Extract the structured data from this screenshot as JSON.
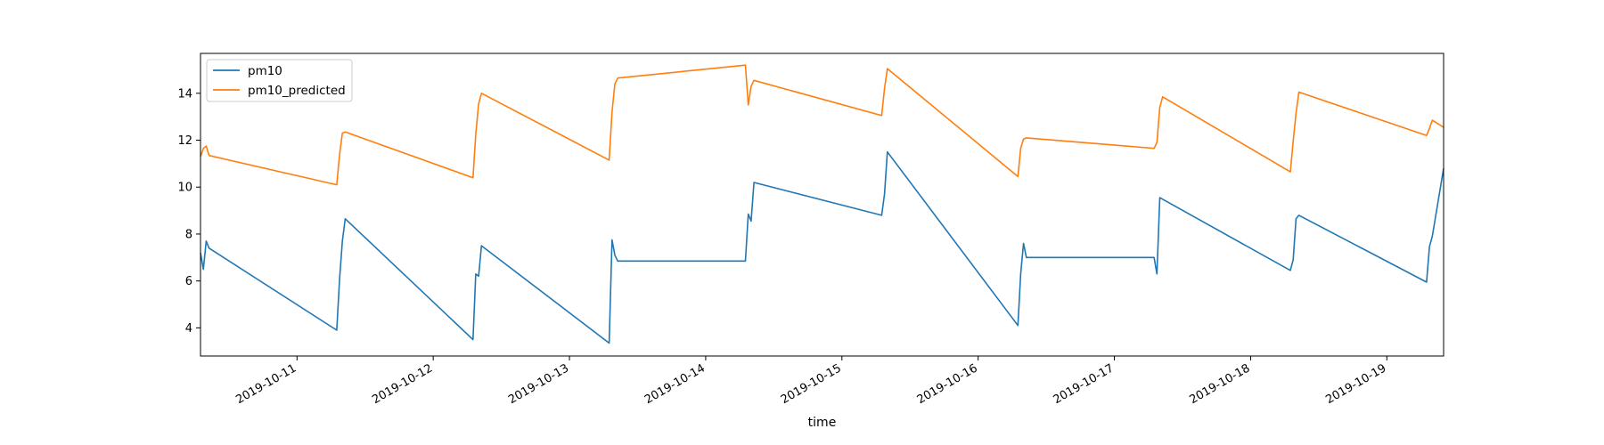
{
  "chart_data": {
    "type": "line",
    "title": "",
    "xlabel": "time",
    "ylabel": "",
    "x_axis_type": "datetime",
    "xlim": [
      "2019-10-10T07:00",
      "2019-10-19T10:00"
    ],
    "ylim": [
      2.8,
      15.7
    ],
    "x_ticks": [
      "2019-10-11",
      "2019-10-12",
      "2019-10-13",
      "2019-10-14",
      "2019-10-15",
      "2019-10-16",
      "2019-10-17",
      "2019-10-18",
      "2019-10-19"
    ],
    "y_ticks": [
      4,
      6,
      8,
      10,
      12,
      14
    ],
    "grid": false,
    "legend_position": "upper-left",
    "series": [
      {
        "name": "pm10",
        "color": "#1f77b4",
        "points": [
          [
            "2019-10-10T07:00",
            7.2
          ],
          [
            "2019-10-10T07:30",
            6.5
          ],
          [
            "2019-10-10T08:00",
            7.7
          ],
          [
            "2019-10-10T08:30",
            7.4
          ],
          [
            "2019-10-11T07:00",
            3.9
          ],
          [
            "2019-10-11T07:30",
            6.1
          ],
          [
            "2019-10-11T08:00",
            7.7
          ],
          [
            "2019-10-11T08:30",
            8.65
          ],
          [
            "2019-10-12T07:00",
            3.5
          ],
          [
            "2019-10-12T07:30",
            6.3
          ],
          [
            "2019-10-12T08:00",
            6.2
          ],
          [
            "2019-10-12T08:30",
            7.5
          ],
          [
            "2019-10-13T07:00",
            3.35
          ],
          [
            "2019-10-13T07:30",
            7.75
          ],
          [
            "2019-10-13T08:00",
            7.1
          ],
          [
            "2019-10-13T08:30",
            6.85
          ],
          [
            "2019-10-14T07:00",
            6.85
          ],
          [
            "2019-10-14T07:30",
            8.85
          ],
          [
            "2019-10-14T08:00",
            8.55
          ],
          [
            "2019-10-14T08:30",
            10.2
          ],
          [
            "2019-10-15T07:00",
            8.8
          ],
          [
            "2019-10-15T07:30",
            9.7
          ],
          [
            "2019-10-15T08:00",
            11.5
          ],
          [
            "2019-10-16T07:00",
            4.1
          ],
          [
            "2019-10-16T07:30",
            6.3
          ],
          [
            "2019-10-16T08:00",
            7.6
          ],
          [
            "2019-10-16T08:30",
            7.0
          ],
          [
            "2019-10-17T07:00",
            7.0
          ],
          [
            "2019-10-17T07:30",
            6.3
          ],
          [
            "2019-10-17T08:00",
            9.55
          ],
          [
            "2019-10-18T07:00",
            6.45
          ],
          [
            "2019-10-18T07:30",
            6.9
          ],
          [
            "2019-10-18T08:00",
            8.65
          ],
          [
            "2019-10-18T08:30",
            8.8
          ],
          [
            "2019-10-19T07:00",
            5.95
          ],
          [
            "2019-10-19T07:30",
            7.45
          ],
          [
            "2019-10-19T08:00",
            7.9
          ],
          [
            "2019-10-19T10:00",
            10.8
          ]
        ]
      },
      {
        "name": "pm10_predicted",
        "color": "#ff7f0e",
        "points": [
          [
            "2019-10-10T07:00",
            11.3
          ],
          [
            "2019-10-10T07:30",
            11.65
          ],
          [
            "2019-10-10T08:00",
            11.75
          ],
          [
            "2019-10-10T08:30",
            11.35
          ],
          [
            "2019-10-11T07:00",
            10.1
          ],
          [
            "2019-10-11T07:30",
            11.4
          ],
          [
            "2019-10-11T08:00",
            12.3
          ],
          [
            "2019-10-11T08:30",
            12.35
          ],
          [
            "2019-10-12T07:00",
            10.4
          ],
          [
            "2019-10-12T07:30",
            12.25
          ],
          [
            "2019-10-12T08:00",
            13.55
          ],
          [
            "2019-10-12T08:30",
            14.0
          ],
          [
            "2019-10-13T07:00",
            11.15
          ],
          [
            "2019-10-13T07:30",
            13.2
          ],
          [
            "2019-10-13T08:00",
            14.4
          ],
          [
            "2019-10-13T08:30",
            14.65
          ],
          [
            "2019-10-14T07:00",
            15.2
          ],
          [
            "2019-10-14T07:30",
            13.5
          ],
          [
            "2019-10-14T08:00",
            14.3
          ],
          [
            "2019-10-14T08:30",
            14.55
          ],
          [
            "2019-10-15T07:00",
            13.05
          ],
          [
            "2019-10-15T07:30",
            14.2
          ],
          [
            "2019-10-15T08:00",
            15.05
          ],
          [
            "2019-10-16T07:00",
            10.45
          ],
          [
            "2019-10-16T07:30",
            11.65
          ],
          [
            "2019-10-16T08:00",
            12.05
          ],
          [
            "2019-10-16T08:30",
            12.1
          ],
          [
            "2019-10-17T07:00",
            11.65
          ],
          [
            "2019-10-17T07:30",
            11.9
          ],
          [
            "2019-10-17T08:00",
            13.4
          ],
          [
            "2019-10-17T08:30",
            13.85
          ],
          [
            "2019-10-18T07:00",
            10.65
          ],
          [
            "2019-10-18T07:30",
            11.95
          ],
          [
            "2019-10-18T08:00",
            13.15
          ],
          [
            "2019-10-18T08:30",
            14.05
          ],
          [
            "2019-10-19T07:00",
            12.2
          ],
          [
            "2019-10-19T07:30",
            12.5
          ],
          [
            "2019-10-19T08:00",
            12.85
          ],
          [
            "2019-10-19T10:00",
            12.55
          ]
        ]
      }
    ]
  }
}
